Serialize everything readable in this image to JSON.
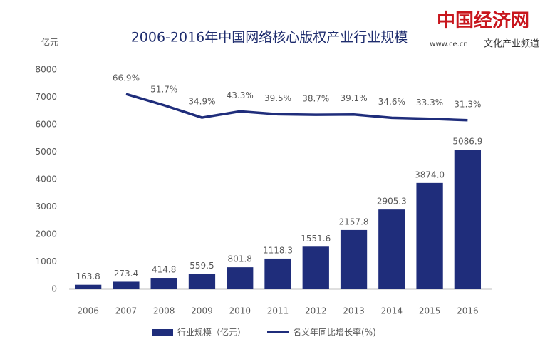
{
  "logo": {
    "name": "中国经济网",
    "url": "www.ce.cn",
    "channel": "文化产业频道"
  },
  "chart_data": {
    "type": "bar",
    "title": "2006-2016年中国网络核心版权产业行业规模",
    "ylabel": "亿元",
    "categories": [
      "2006",
      "2007",
      "2008",
      "2009",
      "2010",
      "2011",
      "2012",
      "2013",
      "2014",
      "2015",
      "2016"
    ],
    "ylim": [
      0,
      8000
    ],
    "yticks": [
      0,
      1000,
      2000,
      3000,
      4000,
      5000,
      6000,
      7000,
      8000
    ],
    "y2lim": [
      -199,
      100
    ],
    "grid": false,
    "legend": "bottom",
    "series": [
      {
        "name": "行业规模（亿元）",
        "type": "bar",
        "color": "#1f2d7b",
        "values": [
          163.8,
          273.4,
          414.8,
          559.5,
          801.8,
          1118.3,
          1551.6,
          2157.8,
          2905.3,
          3874.0,
          5086.9
        ],
        "value_labels": [
          "163.8",
          "273.4",
          "414.8",
          "559.5",
          "801.8",
          "1118.3",
          "1551.6",
          "2157.8",
          "2905.3",
          "3874.0",
          "5086.9"
        ]
      },
      {
        "name": "名义年同比增长率(%)",
        "type": "line",
        "axis": "y2",
        "color": "#1f2d7b",
        "values": [
          null,
          66.9,
          51.7,
          34.9,
          43.3,
          39.5,
          38.7,
          39.1,
          34.6,
          33.3,
          31.3
        ],
        "value_labels": [
          null,
          "66.9%",
          "51.7%",
          "34.9%",
          "43.3%",
          "39.5%",
          "38.7%",
          "39.1%",
          "34.6%",
          "33.3%",
          "31.3%"
        ]
      }
    ]
  }
}
